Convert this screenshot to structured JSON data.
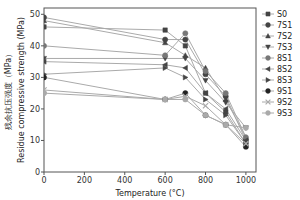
{
  "chart_data": {
    "type": "line",
    "xlabel": "Temperature (°C)",
    "ylabel": "Residue compressive strength (MPa)",
    "annotations": [
      "残余抗压强度（MPa）"
    ],
    "x": [
      0,
      600,
      700,
      800,
      900,
      1000
    ],
    "color": "#aaaaaa",
    "series": [
      {
        "name": "S0",
        "values": [
          46,
          45,
          40,
          25,
          19,
          9
        ],
        "marker": "square",
        "color": "#444444"
      },
      {
        "name": "7S1",
        "values": [
          49,
          42,
          42,
          31,
          24,
          10
        ],
        "marker": "circle",
        "color": "#444444"
      },
      {
        "name": "7S2",
        "values": [
          48,
          41,
          37,
          33,
          23,
          11
        ],
        "marker": "triangle-up",
        "color": "#444444"
      },
      {
        "name": "7S3",
        "values": [
          36,
          36,
          36,
          29,
          22,
          14
        ],
        "marker": "triangle-down",
        "color": "#444444"
      },
      {
        "name": "8S1",
        "values": [
          40,
          37,
          44,
          32,
          25,
          11
        ],
        "marker": "circle",
        "color": "#777777"
      },
      {
        "name": "8S2",
        "values": [
          35,
          34,
          33,
          25,
          20,
          10
        ],
        "marker": "triangle-left",
        "color": "#444444"
      },
      {
        "name": "8S3",
        "values": [
          31,
          33,
          30,
          23,
          18,
          9
        ],
        "marker": "triangle-right",
        "color": "#444444"
      },
      {
        "name": "9S1",
        "values": [
          30,
          23,
          25,
          18,
          15,
          8
        ],
        "marker": "circle",
        "color": "#222222"
      },
      {
        "name": "9S2",
        "values": [
          26,
          23,
          24,
          21,
          15,
          9
        ],
        "marker": "x",
        "color": "#aaaaaa"
      },
      {
        "name": "9S3",
        "values": [
          25,
          23,
          23,
          18,
          15,
          14
        ],
        "marker": "circle",
        "color": "#aaaaaa"
      }
    ],
    "xlim": [
      0,
      1050
    ],
    "ylim": [
      0,
      52
    ],
    "xticks": [
      0,
      200,
      400,
      600,
      800,
      1000
    ],
    "yticks": [
      0,
      10,
      20,
      30,
      40,
      50
    ],
    "grid": false,
    "legend": "upper right"
  }
}
